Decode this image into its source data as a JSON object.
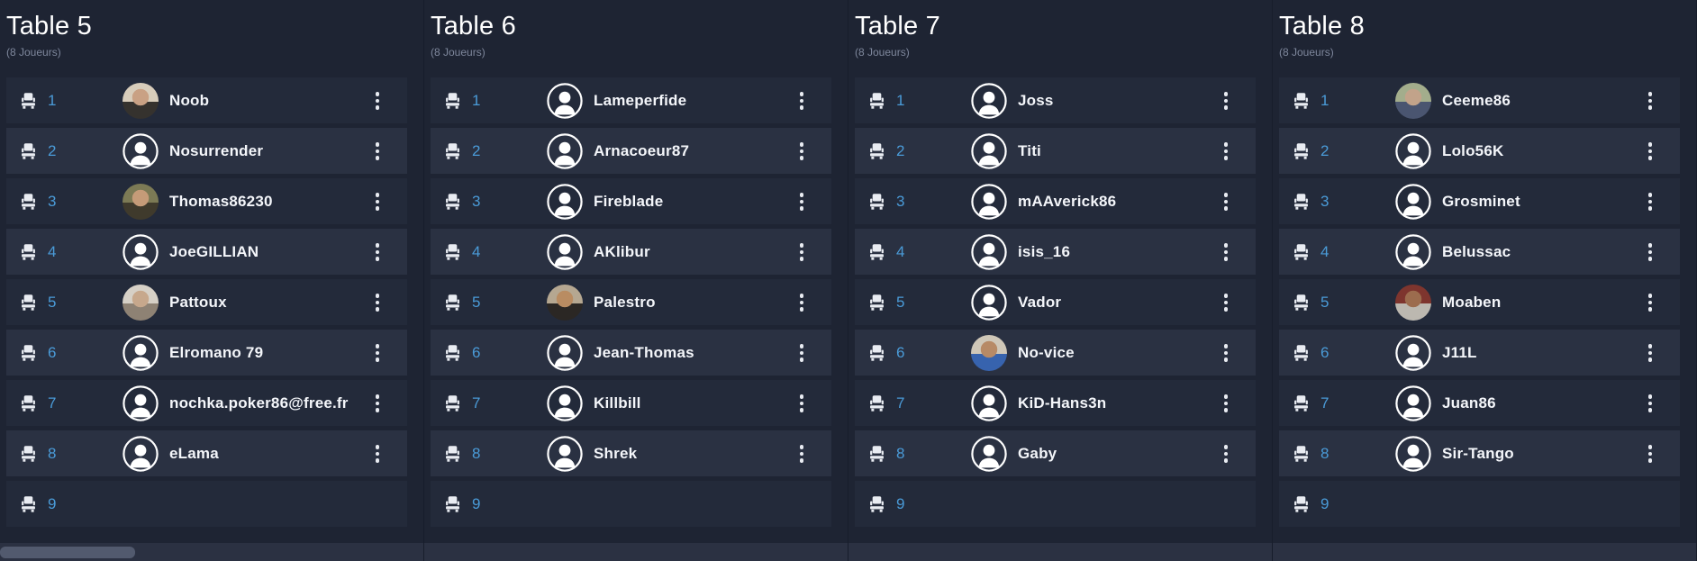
{
  "theme": {
    "page_bg": "#1e2433",
    "row_odd_bg": "#232a3a",
    "row_even_bg": "#2a3142",
    "seat_number_color": "#4a9bd8",
    "player_name_color": "#f4f6fa",
    "title_color": "#ffffff",
    "subtitle_color": "#7e879c",
    "icon_color": "#e9ecf2"
  },
  "icons": {
    "seat": "chair-icon",
    "options": "kebab-menu-icon",
    "default_avatar": "user-silhouette-icon"
  },
  "tables": [
    {
      "title": "Table 5",
      "subtitle": "(8 Joueurs)",
      "seats": [
        {
          "seat": 1,
          "player": "Noob",
          "avatar": "photo",
          "photo_palette": [
            "#d8cdbb",
            "#35322e",
            "#c9a184"
          ]
        },
        {
          "seat": 2,
          "player": "Nosurrender",
          "avatar": "default"
        },
        {
          "seat": 3,
          "player": "Thomas86230",
          "avatar": "photo",
          "photo_palette": [
            "#7c7a55",
            "#3f3a2c",
            "#c59b78"
          ]
        },
        {
          "seat": 4,
          "player": "JoeGILLIAN",
          "avatar": "default"
        },
        {
          "seat": 5,
          "player": "Pattoux",
          "avatar": "photo",
          "photo_palette": [
            "#d6d0c6",
            "#8e8274",
            "#c7a88c"
          ]
        },
        {
          "seat": 6,
          "player": "Elromano 79",
          "avatar": "default"
        },
        {
          "seat": 7,
          "player": "nochka.poker86@free.fr",
          "avatar": "default"
        },
        {
          "seat": 8,
          "player": "eLama",
          "avatar": "default"
        },
        {
          "seat": 9,
          "player": null
        }
      ]
    },
    {
      "title": "Table 6",
      "subtitle": "(8 Joueurs)",
      "seats": [
        {
          "seat": 1,
          "player": "Lameperfide",
          "avatar": "default"
        },
        {
          "seat": 2,
          "player": "Arnacoeur87",
          "avatar": "default"
        },
        {
          "seat": 3,
          "player": "Fireblade",
          "avatar": "default"
        },
        {
          "seat": 4,
          "player": "AKlibur",
          "avatar": "default"
        },
        {
          "seat": 5,
          "player": "Palestro",
          "avatar": "photo",
          "photo_palette": [
            "#b5a791",
            "#2b2724",
            "#b98c62"
          ]
        },
        {
          "seat": 6,
          "player": "Jean-Thomas",
          "avatar": "default"
        },
        {
          "seat": 7,
          "player": "Killbill",
          "avatar": "default"
        },
        {
          "seat": 8,
          "player": "Shrek",
          "avatar": "default"
        },
        {
          "seat": 9,
          "player": null
        }
      ]
    },
    {
      "title": "Table 7",
      "subtitle": "(8 Joueurs)",
      "seats": [
        {
          "seat": 1,
          "player": "Joss",
          "avatar": "default"
        },
        {
          "seat": 2,
          "player": "Titi",
          "avatar": "default"
        },
        {
          "seat": 3,
          "player": "mAAverick86",
          "avatar": "default"
        },
        {
          "seat": 4,
          "player": "isis_16",
          "avatar": "default"
        },
        {
          "seat": 5,
          "player": "Vador",
          "avatar": "default"
        },
        {
          "seat": 6,
          "player": "No-vice",
          "avatar": "photo",
          "photo_palette": [
            "#cfc7b8",
            "#3763ae",
            "#b78a66"
          ]
        },
        {
          "seat": 7,
          "player": "KiD-Hans3n",
          "avatar": "default"
        },
        {
          "seat": 8,
          "player": "Gaby",
          "avatar": "default"
        },
        {
          "seat": 9,
          "player": null
        }
      ]
    },
    {
      "title": "Table 8",
      "subtitle": "(8 Joueurs)",
      "seats": [
        {
          "seat": 1,
          "player": "Ceeme86",
          "avatar": "photo",
          "photo_palette": [
            "#a3ad8c",
            "#4a5570",
            "#c2a38a"
          ]
        },
        {
          "seat": 2,
          "player": "Lolo56K",
          "avatar": "default"
        },
        {
          "seat": 3,
          "player": "Grosminet",
          "avatar": "default"
        },
        {
          "seat": 4,
          "player": "Belussac",
          "avatar": "default"
        },
        {
          "seat": 5,
          "player": "Moaben",
          "avatar": "photo",
          "photo_palette": [
            "#7e352e",
            "#bcb8b0",
            "#9c6c4e"
          ]
        },
        {
          "seat": 6,
          "player": "J11L",
          "avatar": "default"
        },
        {
          "seat": 7,
          "player": "Juan86",
          "avatar": "default"
        },
        {
          "seat": 8,
          "player": "Sir-Tango",
          "avatar": "default"
        },
        {
          "seat": 9,
          "player": null
        }
      ]
    }
  ]
}
